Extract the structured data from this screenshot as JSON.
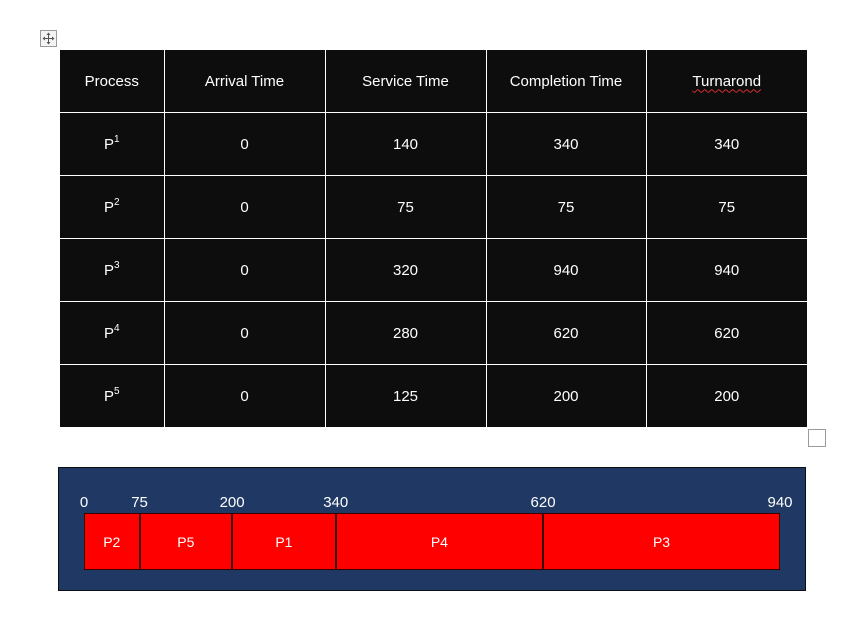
{
  "table": {
    "headers": [
      "Process",
      "Arrival Time",
      "Service Time",
      "Completion Time",
      "Turnarond"
    ],
    "rows": [
      {
        "process": "P",
        "sup": "1",
        "arrival": "0",
        "service": "140",
        "completion": "340",
        "turnaround": "340"
      },
      {
        "process": "P",
        "sup": "2",
        "arrival": "0",
        "service": "75",
        "completion": "75",
        "turnaround": "75"
      },
      {
        "process": "P",
        "sup": "3",
        "arrival": "0",
        "service": "320",
        "completion": "940",
        "turnaround": "940"
      },
      {
        "process": "P",
        "sup": "4",
        "arrival": "0",
        "service": "280",
        "completion": "620",
        "turnaround": "620"
      },
      {
        "process": "P",
        "sup": "5",
        "arrival": "0",
        "service": "125",
        "completion": "200",
        "turnaround": "200"
      }
    ]
  },
  "gantt": {
    "ticks": [
      "0",
      "75",
      "200",
      "340",
      "620",
      "940"
    ],
    "tick_values": [
      0,
      75,
      200,
      340,
      620,
      940
    ],
    "segments": [
      {
        "label": "P2",
        "start": 0,
        "end": 75
      },
      {
        "label": "P5",
        "start": 75,
        "end": 200
      },
      {
        "label": "P1",
        "start": 200,
        "end": 340
      },
      {
        "label": "P4",
        "start": 340,
        "end": 620
      },
      {
        "label": "P3",
        "start": 620,
        "end": 940
      }
    ],
    "colors": {
      "background": "#1f3864",
      "segment": "#ff0000",
      "text": "#ffffff"
    }
  },
  "icons": {
    "move_handle": "move-arrows-icon",
    "resize_handle": "resize-square-icon"
  }
}
